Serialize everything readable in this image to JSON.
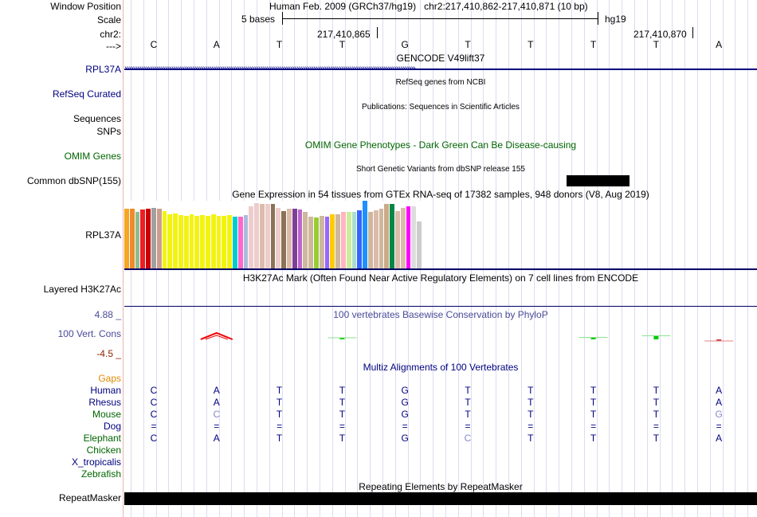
{
  "labels": {
    "window_position": "Window Position",
    "scale": "Scale",
    "chr": "chr2:",
    "arrow": "--->",
    "gencode_row": "RPL37A",
    "refseq": "RefSeq Curated",
    "sequences": "Sequences",
    "snps": "SNPs",
    "omim": "OMIM Genes",
    "common_dbsnp": "Common dbSNP(155)",
    "gtex_row": "RPL37A",
    "layered": "Layered H3K27Ac",
    "cons_hi": "4.88 _",
    "cons_name": "100 Vert. Cons",
    "cons_lo": "-4.5 _",
    "gaps": "Gaps",
    "repeatmasker": "RepeatMasker"
  },
  "header": {
    "assembly": "Human Feb. 2009 (GRCh37/hg19)",
    "position": "chr2:217,410,862-217,410,871 (10 bp)",
    "scale_text": "5 bases",
    "scale_db": "hg19",
    "coord1": "217,410,865",
    "coord2": "217,410,870"
  },
  "sequence": [
    "C",
    "A",
    "T",
    "T",
    "G",
    "T",
    "T",
    "T",
    "T",
    "A"
  ],
  "tracks": {
    "gencode": "GENCODE V49lift37",
    "refseq_title": "RefSeq genes from NCBI",
    "pubs_title": "Publications: Sequences in Scientific Articles",
    "omim_title": "OMIM Gene Phenotypes - Dark Green Can Be Disease-causing",
    "dbsnp_title": "Short Genetic Variants from dbSNP release 155",
    "gtex_title": "Gene Expression in 54 tissues from GTEx RNA-seq of 17382 samples, 948 donors (V8, Aug 2019)",
    "h3k27_title": "H3K27Ac Mark (Often Found Near Active Regulatory Elements) on 7 cell lines from ENCODE",
    "phylop_title": "100 vertebrates Basewise Conservation by PhyloP",
    "multiz_title": "Multiz Alignments of 100 Vertebrates",
    "rmsk_title": "Repeating Elements by RepeatMasker"
  },
  "gtex_bar_levels": [
    0.88,
    0.88,
    0.84,
    0.87,
    0.88,
    0.89,
    0.88,
    0.85,
    0.8,
    0.81,
    0.79,
    0.78,
    0.8,
    0.78,
    0.79,
    0.78,
    0.8,
    0.78,
    0.78,
    0.79,
    0.77,
    0.76,
    0.79,
    0.92,
    0.96,
    0.95,
    0.95,
    0.95,
    0.89,
    0.85,
    0.88,
    0.88,
    0.87,
    0.83,
    0.77,
    0.75,
    0.78,
    0.77,
    0.8,
    0.8,
    0.83,
    0.83,
    0.83,
    0.86,
    1.0,
    0.84,
    0.86,
    0.88,
    0.95,
    0.95,
    0.85,
    0.89,
    0.92,
    0.92,
    0.7
  ],
  "gtex_colors": [
    "#f5a623",
    "#f08a2a",
    "#8fbc8f",
    "#ee1c25",
    "#cc0000",
    "#a0a0a0",
    "#cc9d8a",
    "#f3f312",
    "#f3f312",
    "#f3f312",
    "#f3f312",
    "#f3f312",
    "#f3f312",
    "#f3f312",
    "#f3f312",
    "#f3f312",
    "#f3f312",
    "#f3f312",
    "#f3f312",
    "#f3f312",
    "#00cccc",
    "#ff66cc",
    "#aabbdd",
    "#eecccc",
    "#eecccc",
    "#ddbbaa",
    "#eecccc",
    "#8b7355",
    "#eecccc",
    "#8b7355",
    "#ddbbaa",
    "#7f3f98",
    "#bb66cc",
    "#cdb79e",
    "#cdb79e",
    "#99cc33",
    "#cdb79e",
    "#9966ff",
    "#ffcc00",
    "#cdb79e",
    "#ffb6c1",
    "#ccee99",
    "#aaddcc",
    "#3366ff",
    "#1e90ff",
    "#cdb79e",
    "#ddbbaa",
    "#cdb79e",
    "#ccaa88",
    "#008844",
    "#ddbbaa",
    "#ddbbaa",
    "#ff00ff",
    "#dddddd",
    "#cccccc"
  ],
  "phylop_values": [
    0.0,
    1.0,
    0.0,
    0.05,
    0.0,
    0.0,
    0.0,
    0.25,
    0.45,
    -0.1
  ],
  "alignments": [
    {
      "species": "Human",
      "color": "#000080",
      "bases": [
        "C",
        "A",
        "T",
        "T",
        "G",
        "T",
        "T",
        "T",
        "T",
        "A"
      ]
    },
    {
      "species": "Rhesus",
      "color": "#000080",
      "bases": [
        "C",
        "A",
        "T",
        "T",
        "G",
        "T",
        "T",
        "T",
        "T",
        "A"
      ]
    },
    {
      "species": "Mouse",
      "color": "#006400",
      "bases": [
        "C",
        "C",
        "T",
        "T",
        "G",
        "T",
        "T",
        "T",
        "T",
        "G"
      ]
    },
    {
      "species": "Dog",
      "color": "#000080",
      "bases": [
        "=",
        "=",
        "=",
        "=",
        "=",
        "=",
        "=",
        "=",
        "=",
        "="
      ]
    },
    {
      "species": "Elephant",
      "color": "#006400",
      "bases": [
        "C",
        "A",
        "T",
        "T",
        "G",
        "C",
        "T",
        "T",
        "T",
        "A"
      ]
    },
    {
      "species": "Chicken",
      "color": "#006400",
      "bases": [
        "",
        "",
        "",
        "",
        "",
        "",
        "",
        "",
        "",
        ""
      ]
    },
    {
      "species": "X_tropicalis",
      "color": "#000080",
      "bases": [
        "",
        "",
        "",
        "",
        "",
        "",
        "",
        "",
        "",
        ""
      ]
    },
    {
      "species": "Zebrafish",
      "color": "#006400",
      "bases": [
        "",
        "",
        "",
        "",
        "",
        "",
        "",
        "",
        "",
        ""
      ]
    }
  ],
  "colors": {
    "nav": "#000080",
    "omim": "#006400",
    "phylop": "#4a4a9a",
    "gaps": "#e08a00",
    "cons_lo": "#8b2500"
  }
}
